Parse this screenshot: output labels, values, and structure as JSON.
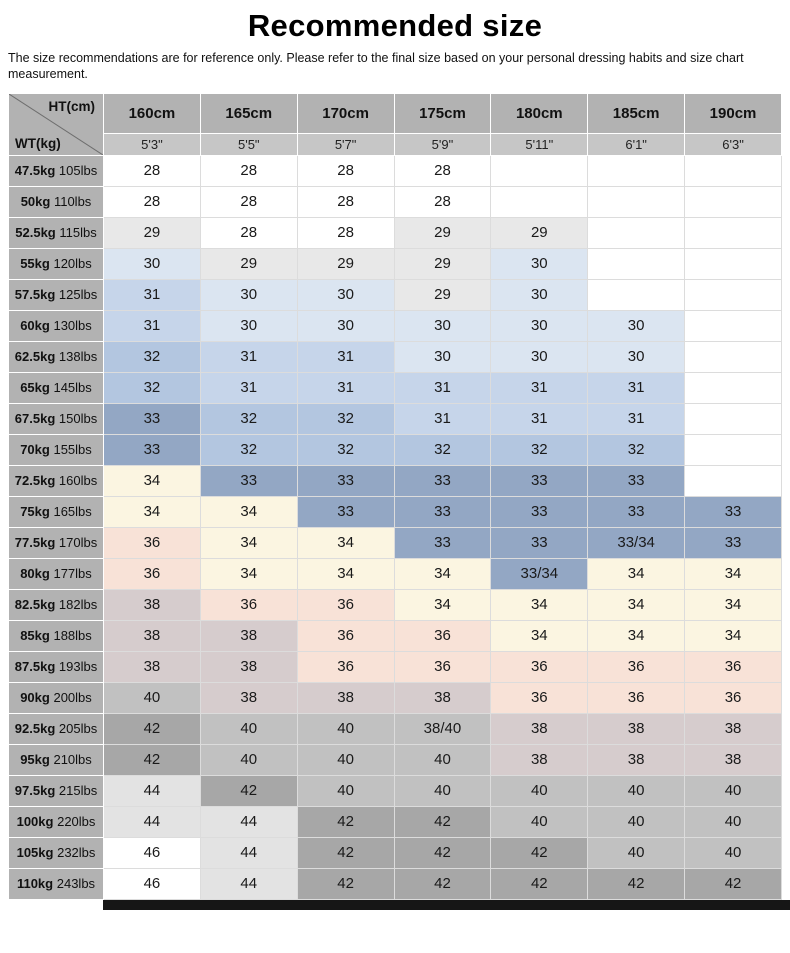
{
  "theme": {
    "header_bg": "#b2b2b2",
    "subheader_bg": "#c6c6c6",
    "label_bg": "#b2b2b2",
    "grid_line": "#dcdcdc",
    "diagonal_line": "#6e6e6e",
    "bottom_bar": "#161616"
  },
  "page": {
    "title": "Recommended size",
    "subtitle": "The size recommendations are for reference only. Please refer to the final size based on your personal dressing habits and size chart measurement."
  },
  "chart_data": {
    "type": "table",
    "title": "Recommended size",
    "corner": {
      "top_right": "HT(cm)",
      "bottom_left": "WT(kg)"
    },
    "columns": [
      {
        "cm": "160cm",
        "ft": "5'3\""
      },
      {
        "cm": "165cm",
        "ft": "5'5\""
      },
      {
        "cm": "170cm",
        "ft": "5'7\""
      },
      {
        "cm": "175cm",
        "ft": "5'9\""
      },
      {
        "cm": "180cm",
        "ft": "5'11\""
      },
      {
        "cm": "185cm",
        "ft": "6'1\""
      },
      {
        "cm": "190cm",
        "ft": "6'3\""
      }
    ],
    "rows": [
      {
        "kg": "47.5kg",
        "lbs": "105lbs",
        "sizes": [
          "28",
          "28",
          "28",
          "28",
          "",
          "",
          ""
        ]
      },
      {
        "kg": "50kg",
        "lbs": "110lbs",
        "sizes": [
          "28",
          "28",
          "28",
          "28",
          "",
          "",
          ""
        ]
      },
      {
        "kg": "52.5kg",
        "lbs": "115lbs",
        "sizes": [
          "29",
          "28",
          "28",
          "29",
          "29",
          "",
          ""
        ]
      },
      {
        "kg": "55kg",
        "lbs": "120lbs",
        "sizes": [
          "30",
          "29",
          "29",
          "29",
          "30",
          "",
          ""
        ]
      },
      {
        "kg": "57.5kg",
        "lbs": "125lbs",
        "sizes": [
          "31",
          "30",
          "30",
          "29",
          "30",
          "",
          ""
        ]
      },
      {
        "kg": "60kg",
        "lbs": "130lbs",
        "sizes": [
          "31",
          "30",
          "30",
          "30",
          "30",
          "30",
          ""
        ]
      },
      {
        "kg": "62.5kg",
        "lbs": "138lbs",
        "sizes": [
          "32",
          "31",
          "31",
          "30",
          "30",
          "30",
          ""
        ]
      },
      {
        "kg": "65kg",
        "lbs": "145lbs",
        "sizes": [
          "32",
          "31",
          "31",
          "31",
          "31",
          "31",
          ""
        ]
      },
      {
        "kg": "67.5kg",
        "lbs": "150lbs",
        "sizes": [
          "33",
          "32",
          "32",
          "31",
          "31",
          "31",
          ""
        ]
      },
      {
        "kg": "70kg",
        "lbs": "155lbs",
        "sizes": [
          "33",
          "32",
          "32",
          "32",
          "32",
          "32",
          ""
        ]
      },
      {
        "kg": "72.5kg",
        "lbs": "160lbs",
        "sizes": [
          "34",
          "33",
          "33",
          "33",
          "33",
          "33",
          ""
        ]
      },
      {
        "kg": "75kg",
        "lbs": "165lbs",
        "sizes": [
          "34",
          "34",
          "33",
          "33",
          "33",
          "33",
          "33"
        ]
      },
      {
        "kg": "77.5kg",
        "lbs": "170lbs",
        "sizes": [
          "36",
          "34",
          "34",
          "33",
          "33",
          "33/34",
          "33"
        ]
      },
      {
        "kg": "80kg",
        "lbs": "177lbs",
        "sizes": [
          "36",
          "34",
          "34",
          "34",
          "33/34",
          "34",
          "34"
        ]
      },
      {
        "kg": "82.5kg",
        "lbs": "182lbs",
        "sizes": [
          "38",
          "36",
          "36",
          "34",
          "34",
          "34",
          "34"
        ]
      },
      {
        "kg": "85kg",
        "lbs": "188lbs",
        "sizes": [
          "38",
          "38",
          "36",
          "36",
          "34",
          "34",
          "34"
        ]
      },
      {
        "kg": "87.5kg",
        "lbs": "193lbs",
        "sizes": [
          "38",
          "38",
          "36",
          "36",
          "36",
          "36",
          "36"
        ]
      },
      {
        "kg": "90kg",
        "lbs": "200lbs",
        "sizes": [
          "40",
          "38",
          "38",
          "38",
          "36",
          "36",
          "36"
        ]
      },
      {
        "kg": "92.5kg",
        "lbs": "205lbs",
        "sizes": [
          "42",
          "40",
          "40",
          "38/40",
          "38",
          "38",
          "38"
        ]
      },
      {
        "kg": "95kg",
        "lbs": "210lbs",
        "sizes": [
          "42",
          "40",
          "40",
          "40",
          "38",
          "38",
          "38"
        ]
      },
      {
        "kg": "97.5kg",
        "lbs": "215lbs",
        "sizes": [
          "44",
          "42",
          "40",
          "40",
          "40",
          "40",
          "40"
        ]
      },
      {
        "kg": "100kg",
        "lbs": "220lbs",
        "sizes": [
          "44",
          "44",
          "42",
          "42",
          "40",
          "40",
          "40"
        ]
      },
      {
        "kg": "105kg",
        "lbs": "232lbs",
        "sizes": [
          "46",
          "44",
          "42",
          "42",
          "42",
          "40",
          "40"
        ]
      },
      {
        "kg": "110kg",
        "lbs": "243lbs",
        "sizes": [
          "46",
          "44",
          "42",
          "42",
          "42",
          "42",
          "42"
        ]
      }
    ],
    "size_colors": {
      "28": "#ffffff",
      "29": "#e8e8e8",
      "30": "#dbe5f1",
      "31": "#c6d5ea",
      "32": "#b3c6e0",
      "33": "#93a7c4",
      "33/34": "#93a7c4",
      "34": "#fbf5e1",
      "36": "#f8e2d7",
      "38": "#d6cccd",
      "38/40": "#c1c1c1",
      "40": "#c1c1c1",
      "42": "#a7a7a7",
      "44": "#e3e3e3",
      "46": "#ffffff",
      "": "#ffffff"
    }
  }
}
